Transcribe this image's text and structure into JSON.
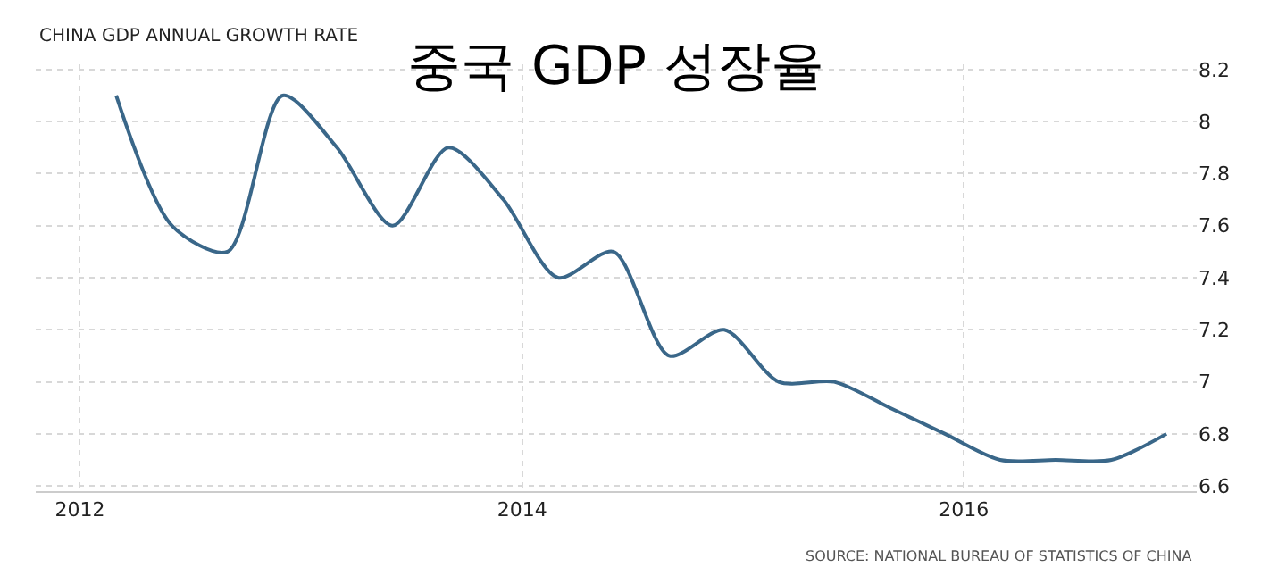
{
  "chart_data": {
    "type": "line",
    "title": "CHINA GDP ANNUAL GROWTH RATE",
    "subtitle": "중국 GDP 성장율",
    "x": [
      "2012-03",
      "2012-06",
      "2012-09",
      "2012-12",
      "2013-03",
      "2013-06",
      "2013-09",
      "2013-12",
      "2014-03",
      "2014-06",
      "2014-09",
      "2014-12",
      "2015-03",
      "2015-06",
      "2015-09",
      "2015-12",
      "2016-03",
      "2016-06",
      "2016-09",
      "2016-12"
    ],
    "series": [
      {
        "color": "#3a6789",
        "values": [
          8.1,
          7.6,
          7.5,
          8.1,
          7.9,
          7.6,
          7.9,
          7.7,
          7.4,
          7.5,
          7.1,
          7.2,
          7.0,
          7.0,
          6.9,
          6.8,
          6.7,
          6.7,
          6.7,
          6.8
        ]
      }
    ],
    "xlim": [
      "2011-10-20",
      "2017-01-20"
    ],
    "xticks": [
      {
        "value": "2012-01-01",
        "label": "2012"
      },
      {
        "value": "2014-01-01",
        "label": "2014"
      },
      {
        "value": "2016-01-01",
        "label": "2016"
      }
    ],
    "ylim": [
      6.58,
      8.22
    ],
    "yticks": [
      6.6,
      6.8,
      7,
      7.2,
      7.4,
      7.6,
      7.8,
      8,
      8.2
    ],
    "grid": true,
    "marker": "none",
    "line_style": "solid",
    "annotations": [
      "SOURCE: NATIONAL BUREAU OF STATISTICS OF CHINA"
    ]
  }
}
